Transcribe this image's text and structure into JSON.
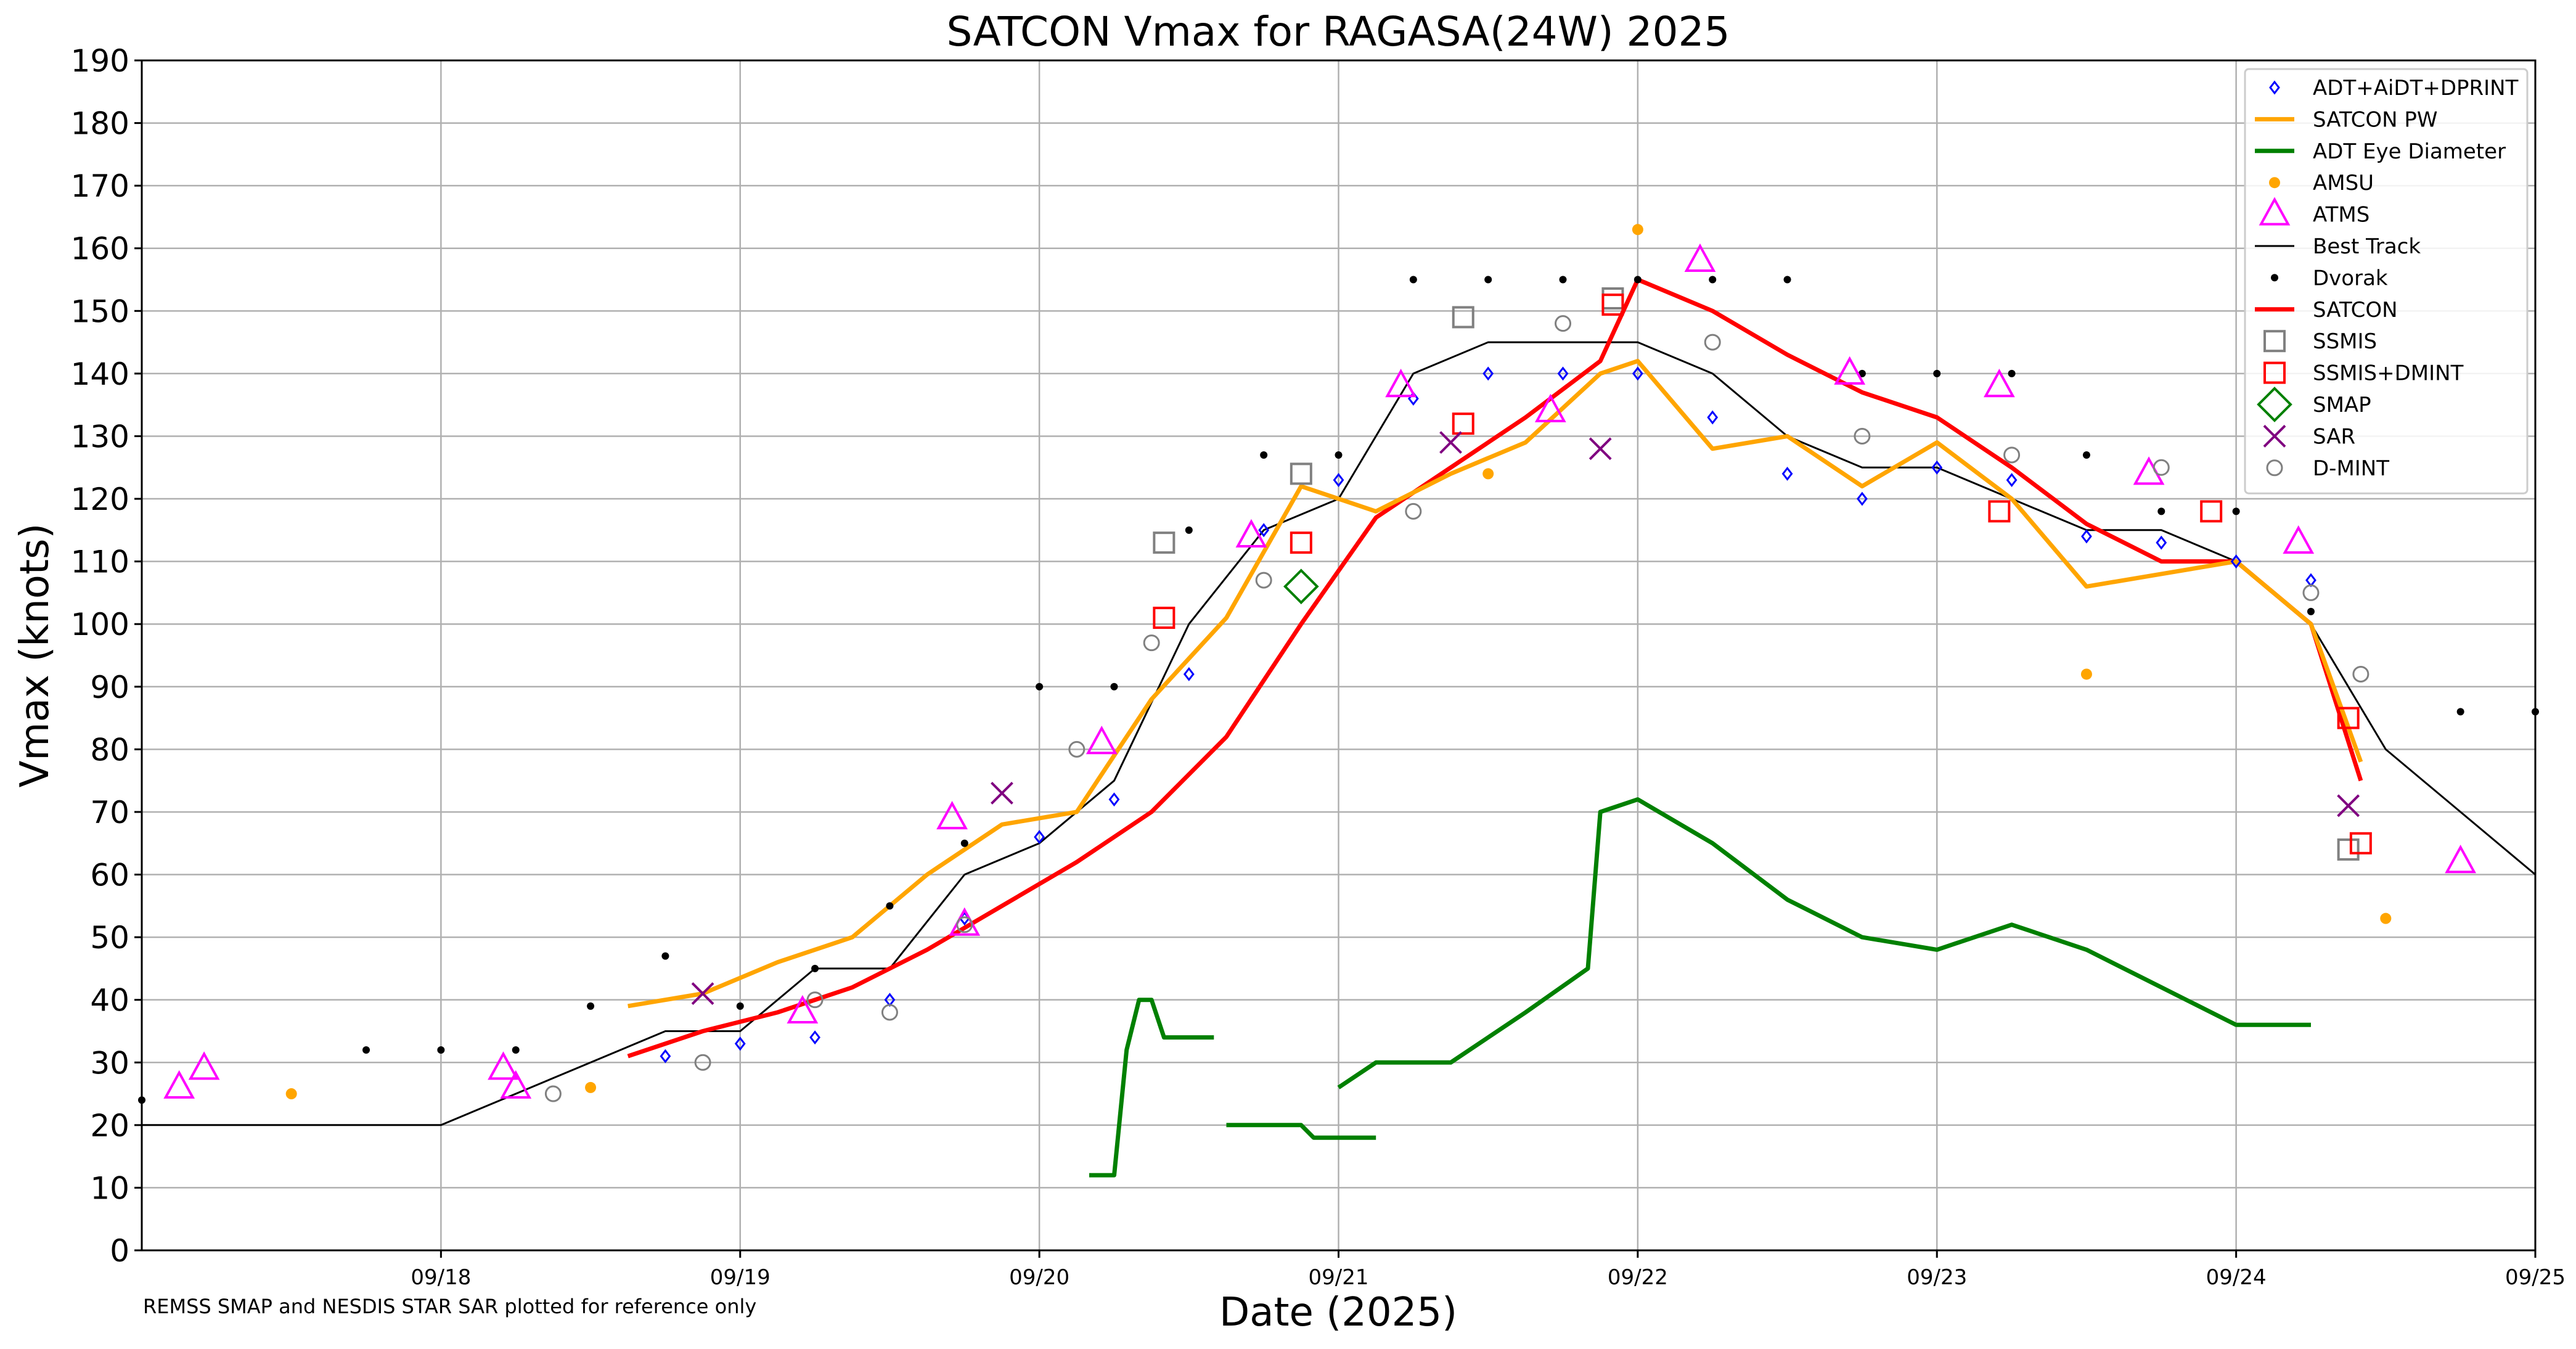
{
  "chart_data": {
    "type": "scatter",
    "title": "SATCON Vmax for RAGASA(24W) 2025",
    "xlabel": "Date (2025)",
    "ylabel": "Vmax (knots)",
    "note": "REMSS SMAP and NESDIS STAR SAR plotted for reference only",
    "xlim": [
      "2025-09-17T00:00",
      "2025-09-25T00:00"
    ],
    "ylim": [
      0,
      190
    ],
    "x_ticks": [
      "09/18",
      "09/19",
      "09/20",
      "09/21",
      "09/22",
      "09/23",
      "09/24",
      "09/25"
    ],
    "y_ticks": [
      0,
      10,
      20,
      30,
      40,
      50,
      60,
      70,
      80,
      90,
      100,
      110,
      120,
      130,
      140,
      150,
      160,
      170,
      180,
      190
    ],
    "grid": true,
    "legend_position": "top-right",
    "legend": [
      "ADT+AiDT+DPRINT",
      "SATCON PW",
      "ADT Eye Diameter",
      "AMSU",
      "ATMS",
      "Best Track",
      "Dvorak",
      "SATCON",
      "SSMIS",
      "SSMIS+DMINT",
      "SMAP",
      "SAR",
      "D-MINT"
    ],
    "series": [
      {
        "name": "Best Track",
        "style": "line",
        "color": "#000000",
        "x": [
          "2025-09-17T00:00",
          "2025-09-18T00:00",
          "2025-09-18T18:00",
          "2025-09-19T00:00",
          "2025-09-19T06:00",
          "2025-09-19T12:00",
          "2025-09-19T18:00",
          "2025-09-20T00:00",
          "2025-09-20T06:00",
          "2025-09-20T12:00",
          "2025-09-20T18:00",
          "2025-09-21T00:00",
          "2025-09-21T06:00",
          "2025-09-21T12:00",
          "2025-09-21T18:00",
          "2025-09-22T00:00",
          "2025-09-22T06:00",
          "2025-09-22T12:00",
          "2025-09-22T18:00",
          "2025-09-23T00:00",
          "2025-09-23T06:00",
          "2025-09-23T12:00",
          "2025-09-23T18:00",
          "2025-09-24T00:00",
          "2025-09-24T06:00",
          "2025-09-24T12:00",
          "2025-09-25T00:00"
        ],
        "y": [
          20,
          20,
          35,
          35,
          45,
          45,
          60,
          65,
          75,
          100,
          115,
          120,
          140,
          145,
          145,
          145,
          140,
          130,
          125,
          125,
          120,
          115,
          115,
          110,
          100,
          80,
          60
        ]
      },
      {
        "name": "SATCON",
        "style": "line",
        "color": "#ff0000",
        "x": [
          "2025-09-18T15:00",
          "2025-09-18T21:00",
          "2025-09-19T03:00",
          "2025-09-19T09:00",
          "2025-09-19T15:00",
          "2025-09-19T21:00",
          "2025-09-20T03:00",
          "2025-09-20T09:00",
          "2025-09-20T15:00",
          "2025-09-20T21:00",
          "2025-09-21T03:00",
          "2025-09-21T09:00",
          "2025-09-21T15:00",
          "2025-09-21T21:00",
          "2025-09-22T00:00",
          "2025-09-22T06:00",
          "2025-09-22T12:00",
          "2025-09-22T18:00",
          "2025-09-23T00:00",
          "2025-09-23T06:00",
          "2025-09-23T12:00",
          "2025-09-23T18:00",
          "2025-09-24T00:00",
          "2025-09-24T06:00",
          "2025-09-24T10:00"
        ],
        "y": [
          31,
          35,
          38,
          42,
          48,
          55,
          62,
          70,
          82,
          100,
          117,
          125,
          133,
          142,
          155,
          150,
          143,
          137,
          133,
          125,
          116,
          110,
          110,
          100,
          75
        ]
      },
      {
        "name": "SATCON PW",
        "style": "line",
        "color": "#ffa500",
        "x": [
          "2025-09-18T15:00",
          "2025-09-18T21:00",
          "2025-09-19T03:00",
          "2025-09-19T09:00",
          "2025-09-19T15:00",
          "2025-09-19T21:00",
          "2025-09-20T03:00",
          "2025-09-20T09:00",
          "2025-09-20T15:00",
          "2025-09-20T21:00",
          "2025-09-21T03:00",
          "2025-09-21T09:00",
          "2025-09-21T15:00",
          "2025-09-21T21:00",
          "2025-09-22T00:00",
          "2025-09-22T06:00",
          "2025-09-22T12:00",
          "2025-09-22T18:00",
          "2025-09-23T00:00",
          "2025-09-23T06:00",
          "2025-09-23T12:00",
          "2025-09-23T18:00",
          "2025-09-24T00:00",
          "2025-09-24T06:00",
          "2025-09-24T10:00"
        ],
        "y": [
          39,
          41,
          46,
          50,
          60,
          68,
          70,
          88,
          101,
          122,
          118,
          124,
          129,
          140,
          142,
          128,
          130,
          122,
          129,
          120,
          106,
          108,
          110,
          100,
          78
        ]
      },
      {
        "name": "ADT Eye Diameter",
        "style": "line",
        "color": "#008000",
        "segments": [
          {
            "x": [
              "2025-09-20T04:00",
              "2025-09-20T06:00",
              "2025-09-20T07:00",
              "2025-09-20T08:00",
              "2025-09-20T09:00",
              "2025-09-20T10:00",
              "2025-09-20T14:00"
            ],
            "y": [
              12,
              12,
              32,
              40,
              40,
              34,
              34
            ]
          },
          {
            "x": [
              "2025-09-20T15:00",
              "2025-09-20T21:00",
              "2025-09-20T22:00",
              "2025-09-21T03:00"
            ],
            "y": [
              20,
              20,
              18,
              18
            ]
          },
          {
            "x": [
              "2025-09-21T00:00",
              "2025-09-21T03:00",
              "2025-09-21T09:00",
              "2025-09-21T15:00",
              "2025-09-21T20:00",
              "2025-09-21T21:00",
              "2025-09-22T00:00",
              "2025-09-22T06:00",
              "2025-09-22T12:00",
              "2025-09-22T18:00",
              "2025-09-23T00:00",
              "2025-09-23T06:00",
              "2025-09-23T12:00",
              "2025-09-23T18:00",
              "2025-09-24T00:00",
              "2025-09-24T06:00"
            ],
            "y": [
              26,
              30,
              30,
              38,
              45,
              70,
              72,
              65,
              56,
              50,
              48,
              52,
              48,
              42,
              36,
              36
            ]
          }
        ]
      },
      {
        "name": "ADT+AiDT+DPRINT",
        "style": "marker",
        "marker": "diamond",
        "color": "#0000ff",
        "x": [
          "2025-09-18T18:00",
          "2025-09-19T00:00",
          "2025-09-19T06:00",
          "2025-09-19T12:00",
          "2025-09-19T18:00",
          "2025-09-20T00:00",
          "2025-09-20T06:00",
          "2025-09-20T12:00",
          "2025-09-20T18:00",
          "2025-09-21T00:00",
          "2025-09-21T06:00",
          "2025-09-21T12:00",
          "2025-09-21T18:00",
          "2025-09-22T00:00",
          "2025-09-22T06:00",
          "2025-09-22T12:00",
          "2025-09-22T18:00",
          "2025-09-23T00:00",
          "2025-09-23T06:00",
          "2025-09-23T12:00",
          "2025-09-23T18:00",
          "2025-09-24T00:00",
          "2025-09-24T06:00"
        ],
        "y": [
          31,
          33,
          34,
          40,
          53,
          66,
          72,
          92,
          115,
          123,
          136,
          140,
          140,
          140,
          133,
          124,
          120,
          125,
          123,
          114,
          113,
          110,
          107
        ]
      },
      {
        "name": "Dvorak",
        "style": "marker",
        "marker": "dot",
        "color": "#000000",
        "x": [
          "2025-09-17T00:00",
          "2025-09-17T18:00",
          "2025-09-18T00:00",
          "2025-09-18T06:00",
          "2025-09-18T12:00",
          "2025-09-18T18:00",
          "2025-09-19T00:00",
          "2025-09-19T06:00",
          "2025-09-19T12:00",
          "2025-09-19T18:00",
          "2025-09-20T00:00",
          "2025-09-20T06:00",
          "2025-09-20T12:00",
          "2025-09-20T18:00",
          "2025-09-21T00:00",
          "2025-09-21T06:00",
          "2025-09-21T12:00",
          "2025-09-21T18:00",
          "2025-09-22T00:00",
          "2025-09-22T06:00",
          "2025-09-22T12:00",
          "2025-09-22T18:00",
          "2025-09-23T00:00",
          "2025-09-23T06:00",
          "2025-09-23T12:00",
          "2025-09-23T18:00",
          "2025-09-24T00:00",
          "2025-09-24T06:00",
          "2025-09-24T18:00",
          "2025-09-25T00:00"
        ],
        "y": [
          24,
          32,
          32,
          32,
          39,
          47,
          39,
          45,
          55,
          65,
          90,
          90,
          115,
          127,
          127,
          155,
          155,
          155,
          155,
          155,
          155,
          140,
          140,
          140,
          127,
          118,
          118,
          102,
          86,
          86
        ]
      },
      {
        "name": "AMSU",
        "style": "marker",
        "marker": "dot",
        "color": "#ffa500",
        "x": [
          "2025-09-17T12:00",
          "2025-09-18T12:00",
          "2025-09-21T12:00",
          "2025-09-22T00:00",
          "2025-09-23T12:00",
          "2025-09-24T12:00"
        ],
        "y": [
          25,
          26,
          124,
          163,
          92,
          53
        ]
      },
      {
        "name": "ATMS",
        "style": "marker",
        "marker": "triangle",
        "color": "#ff00ff",
        "x": [
          "2025-09-17T03:00",
          "2025-09-17T05:00",
          "2025-09-18T05:00",
          "2025-09-18T06:00",
          "2025-09-19T05:00",
          "2025-09-19T17:00",
          "2025-09-19T18:00",
          "2025-09-20T05:00",
          "2025-09-20T17:00",
          "2025-09-21T05:00",
          "2025-09-21T17:00",
          "2025-09-22T05:00",
          "2025-09-22T17:00",
          "2025-09-23T05:00",
          "2025-09-23T17:00",
          "2025-09-24T05:00",
          "2025-09-24T18:00"
        ],
        "y": [
          26,
          29,
          29,
          26,
          38,
          69,
          52,
          81,
          114,
          138,
          134,
          158,
          140,
          138,
          124,
          113,
          62
        ]
      },
      {
        "name": "SSMIS",
        "style": "marker",
        "marker": "square",
        "color": "#808080",
        "x": [
          "2025-09-20T10:00",
          "2025-09-20T21:00",
          "2025-09-21T10:00",
          "2025-09-21T22:00",
          "2025-09-24T09:00"
        ],
        "y": [
          113,
          124,
          149,
          152,
          64
        ]
      },
      {
        "name": "SSMIS+DMINT",
        "style": "marker",
        "marker": "square",
        "color": "#ff0000",
        "x": [
          "2025-09-20T10:00",
          "2025-09-20T21:00",
          "2025-09-21T10:00",
          "2025-09-21T22:00",
          "2025-09-23T05:00",
          "2025-09-23T22:00",
          "2025-09-24T09:00",
          "2025-09-24T10:00"
        ],
        "y": [
          101,
          113,
          132,
          151,
          118,
          118,
          85,
          65
        ]
      },
      {
        "name": "SMAP",
        "style": "marker",
        "marker": "diamond-open",
        "color": "#008000",
        "x": [
          "2025-09-20T21:00"
        ],
        "y": [
          106
        ]
      },
      {
        "name": "SAR",
        "style": "marker",
        "marker": "x",
        "color": "#800080",
        "x": [
          "2025-09-18T21:00",
          "2025-09-19T21:00",
          "2025-09-21T09:00",
          "2025-09-21T21:00",
          "2025-09-24T09:00"
        ],
        "y": [
          41,
          73,
          129,
          128,
          71
        ]
      },
      {
        "name": "D-MINT",
        "style": "marker",
        "marker": "circle",
        "color": "#808080",
        "x": [
          "2025-09-18T09:00",
          "2025-09-18T21:00",
          "2025-09-19T06:00",
          "2025-09-19T12:00",
          "2025-09-19T18:00",
          "2025-09-20T03:00",
          "2025-09-20T09:00",
          "2025-09-20T18:00",
          "2025-09-21T06:00",
          "2025-09-21T18:00",
          "2025-09-22T06:00",
          "2025-09-22T18:00",
          "2025-09-23T06:00",
          "2025-09-23T18:00",
          "2025-09-24T06:00",
          "2025-09-24T10:00"
        ],
        "y": [
          25,
          30,
          40,
          38,
          52,
          80,
          97,
          107,
          118,
          148,
          145,
          130,
          127,
          125,
          105,
          92
        ]
      }
    ]
  }
}
